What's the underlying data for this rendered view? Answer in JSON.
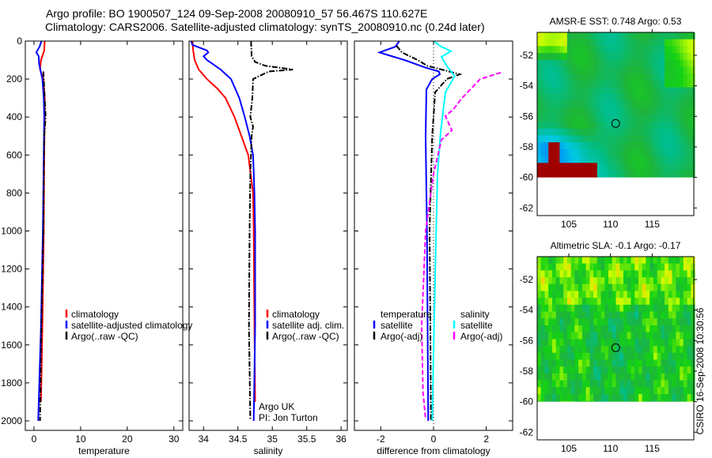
{
  "title": {
    "line1": "Argo profile: BO 1900507_124 09-Sep-2008 20080910_57 56.467S 110.627E",
    "line2": "Climatology: CARS2006. Satellite-adjusted climatology: synTS_20080910.nc (0.24d later)"
  },
  "credit": {
    "line1": "Argo UK",
    "line2": "PI: Jon Turton"
  },
  "timestamp": "CSIRO 16-Sep-2008 10:30:56",
  "chart_data": [
    {
      "type": "line",
      "name": "temperature-profile",
      "xlabel": "temperature",
      "ylabel": "",
      "xlim": [
        -1.86,
        31.9
      ],
      "ylim": [
        0,
        2050
      ],
      "y_reversed": true,
      "xticks": [
        0,
        10,
        20,
        30
      ],
      "xtick_labels": [
        "0",
        "10",
        "20",
        "30"
      ],
      "yticks": [
        0,
        200,
        400,
        600,
        800,
        1000,
        1200,
        1400,
        1600,
        1800,
        2000
      ],
      "ytick_labels": [
        "0",
        "200",
        "400",
        "600",
        "800",
        "1000",
        "1200",
        "1400",
        "1600",
        "1800",
        "2000"
      ],
      "legend": {
        "placement": "center",
        "entries": [
          "climatology",
          "satellite-adjusted climatology",
          "Argo(..raw -QC)"
        ]
      },
      "series": [
        {
          "name": "climatology",
          "color": "#ff0000",
          "style": "solid",
          "depth": [
            0,
            50,
            100,
            150,
            200,
            300,
            400,
            600,
            1000,
            1500,
            1900
          ],
          "values": [
            2.3,
            2.2,
            1.5,
            1.3,
            2.0,
            2.3,
            2.3,
            2.2,
            2.1,
            1.8,
            1.5
          ]
        },
        {
          "name": "satellite-adjusted climatology",
          "color": "#0000ff",
          "style": "solid",
          "depth": [
            0,
            30,
            60,
            80,
            120,
            200,
            300,
            400,
            600,
            1000,
            1500,
            2000
          ],
          "values": [
            1.6,
            1.2,
            0.5,
            1.0,
            1.1,
            1.8,
            2.1,
            2.2,
            2.1,
            1.9,
            1.5,
            0.9
          ]
        },
        {
          "name": "Argo(..raw -QC)",
          "color": "#000000",
          "style": "dashdot",
          "depth": [
            160,
            200,
            300,
            400,
            500,
            1000,
            1500,
            2000
          ],
          "values": [
            2.0,
            2.1,
            2.3,
            2.5,
            2.2,
            2.0,
            1.6,
            1.3
          ]
        }
      ]
    },
    {
      "type": "line",
      "name": "salinity-profile",
      "xlabel": "salinity",
      "xlim": [
        33.79,
        36.09
      ],
      "ylim": [
        0,
        2050
      ],
      "y_reversed": true,
      "xticks": [
        34,
        34.5,
        35,
        35.5,
        36
      ],
      "xtick_labels": [
        "34",
        "34.5",
        "35",
        "35.5",
        "36"
      ],
      "legend": {
        "placement": "center-right",
        "entries": [
          "climatology",
          "satellite adj. clim.",
          "Argo(..raw -QC)"
        ]
      },
      "series": [
        {
          "name": "climatology",
          "color": "#ff0000",
          "style": "solid",
          "depth": [
            0,
            50,
            100,
            150,
            200,
            250,
            300,
            400,
            500,
            600,
            800,
            1000,
            1500,
            1900
          ],
          "values": [
            33.84,
            33.85,
            33.87,
            33.93,
            34.05,
            34.2,
            34.32,
            34.45,
            34.55,
            34.65,
            34.72,
            34.73,
            34.74,
            34.75
          ]
        },
        {
          "name": "satellite adj. clim.",
          "color": "#0000ff",
          "style": "solid",
          "depth": [
            0,
            20,
            50,
            60,
            80,
            100,
            150,
            200,
            300,
            400,
            500,
            600,
            800,
            1000,
            1500,
            2000
          ],
          "values": [
            33.82,
            33.84,
            34.05,
            34.07,
            34.0,
            34.05,
            34.25,
            34.4,
            34.52,
            34.6,
            34.67,
            34.72,
            34.74,
            34.75,
            34.75,
            34.73
          ]
        },
        {
          "name": "Argo(..raw -QC)",
          "color": "#000000",
          "style": "dashdot",
          "depth": [
            0,
            80,
            110,
            130,
            140,
            150,
            160,
            200,
            300,
            400,
            450,
            500,
            700,
            1000,
            1500,
            1990
          ],
          "values": [
            34.69,
            34.7,
            34.75,
            34.9,
            35.1,
            35.3,
            34.95,
            34.72,
            34.71,
            34.68,
            34.72,
            34.7,
            34.68,
            34.67,
            34.66,
            34.68
          ]
        }
      ]
    },
    {
      "type": "line",
      "name": "difference-profile",
      "xlabel": "difference from climatology",
      "xlim": [
        -3.0,
        3.0
      ],
      "ylim": [
        0,
        2050
      ],
      "y_reversed": true,
      "xticks": [
        -2,
        0,
        2
      ],
      "xtick_labels": [
        "-2",
        "0",
        "2"
      ],
      "zero_line": true,
      "legend": {
        "placement": "center",
        "groups": [
          {
            "header": "temperature",
            "entries": [
              "satellite",
              "Argo(-adj)"
            ]
          },
          {
            "header": "salinity",
            "entries": [
              "satellite",
              "Argo(-adj)"
            ]
          }
        ]
      },
      "series": [
        {
          "name": "temperature satellite",
          "color": "#0000ff",
          "style": "solid",
          "depth": [
            0,
            30,
            60,
            75,
            100,
            140,
            160,
            175,
            200,
            255,
            500,
            1000,
            2000
          ],
          "values": [
            -1.3,
            -1.45,
            -2.05,
            -1.7,
            -1.1,
            -0.3,
            0.2,
            0.24,
            -0.05,
            -0.27,
            -0.3,
            -0.25,
            -0.2
          ]
        },
        {
          "name": "temperature Argo(-adj)",
          "color": "#000000",
          "style": "dashdot",
          "depth": [
            25,
            60,
            100,
            130,
            175,
            200,
            270,
            400,
            500,
            1000,
            1500,
            2000
          ],
          "values": [
            -1.4,
            -1.2,
            -0.6,
            -0.24,
            1.0,
            0.5,
            0.06,
            0.0,
            -0.05,
            -0.15,
            -0.12,
            -0.1
          ]
        },
        {
          "name": "salinity satellite",
          "color": "#00ffff",
          "style": "solid",
          "depth": [
            0,
            30,
            54,
            83,
            130,
            185,
            270,
            480,
            700,
            1000,
            1500,
            2000
          ],
          "values": [
            0.0,
            0.3,
            0.66,
            0.3,
            0.5,
            0.8,
            0.45,
            0.27,
            0.15,
            0.1,
            0.02,
            -0.05
          ]
        },
        {
          "name": "salinity Argo(-adj)",
          "color": "#ff00ff",
          "style": "dashed",
          "depth": [
            166,
            200,
            305,
            360,
            395,
            470,
            520,
            700,
            1000,
            1500,
            1850,
            1990
          ],
          "values": [
            2.55,
            1.77,
            1.05,
            0.75,
            0.45,
            0.7,
            0.3,
            0.0,
            -0.3,
            -0.45,
            -0.4,
            -0.3
          ]
        }
      ]
    },
    {
      "type": "heatmap",
      "name": "sst-map",
      "title": "AMSR-E SST: 0.748 Argo: 0.53",
      "xlim": [
        101.2,
        120.0
      ],
      "ylim": [
        -62.5,
        -50.5
      ],
      "data_extent_lat_min": -60,
      "xticks": [
        105,
        110,
        115
      ],
      "xtick_labels": [
        "105",
        "110",
        "115"
      ],
      "yticks": [
        -52,
        -54,
        -56,
        -58,
        -60,
        -62
      ],
      "ytick_labels": [
        "-52",
        "-54",
        "-56",
        "-58",
        "-60",
        "-62"
      ],
      "marker": {
        "lon": 110.627,
        "lat": -56.467
      }
    },
    {
      "type": "heatmap",
      "name": "sla-map",
      "title": "Altimetric SLA: -0.1 Argo: -0.17",
      "xlim": [
        101.2,
        120.0
      ],
      "ylim": [
        -62.5,
        -50.5
      ],
      "data_extent_lat_min": -60,
      "xticks": [
        105,
        110,
        115
      ],
      "xtick_labels": [
        "105",
        "110",
        "115"
      ],
      "yticks": [
        -52,
        -54,
        -56,
        -58,
        -60,
        -62
      ],
      "ytick_labels": [
        "-52",
        "-54",
        "-56",
        "-58",
        "-60",
        "-62"
      ],
      "marker": {
        "lon": 110.627,
        "lat": -56.467
      }
    }
  ]
}
